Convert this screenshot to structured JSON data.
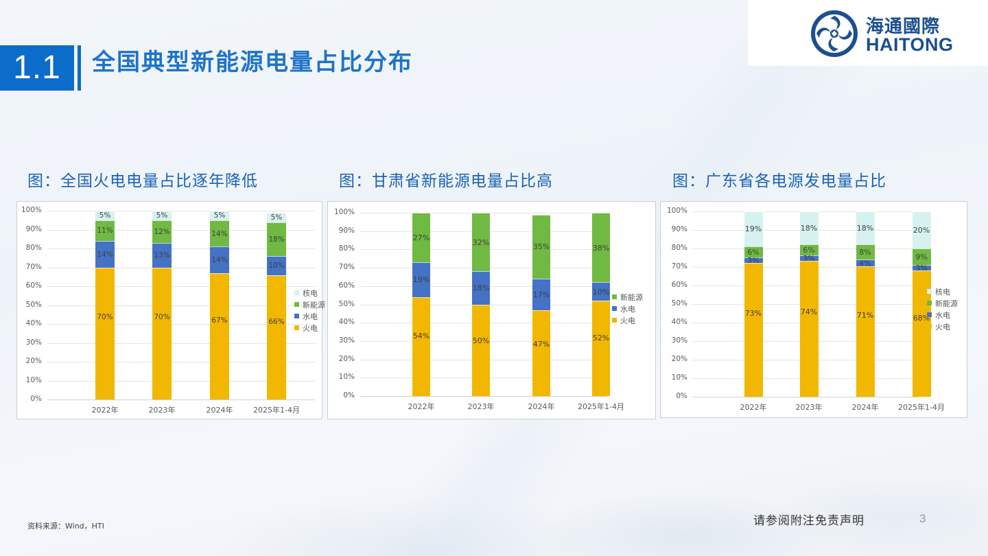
{
  "header": {
    "section_number": "1.1",
    "title": "全国典型新能源电量占比分布",
    "logo": {
      "cn": "海通國際",
      "en": "HAITONG",
      "icon": "haitong-logo-icon",
      "color": "#1b4f8f"
    },
    "accent_color": "#0b6cc9"
  },
  "captions": [
    "图：全国火电电量占比逐年降低",
    "图：甘肃省新能源电量占比高",
    "图：广东省各电源发电量占比"
  ],
  "colors": {
    "火电": "#f2b700",
    "水电": "#4472c4",
    "新能源": "#70b942",
    "核电": "#d6f2f0"
  },
  "chart_data": [
    {
      "type": "bar",
      "stacked": true,
      "title": "图：全国火电电量占比逐年降低",
      "categories": [
        "2022年",
        "2023年",
        "2024年",
        "2025年1-4月"
      ],
      "series": [
        {
          "name": "火电",
          "values": [
            70,
            70,
            67,
            66
          ],
          "labels": [
            "70%",
            "70%",
            "67%",
            "66%"
          ]
        },
        {
          "name": "水电",
          "values": [
            14,
            13,
            14,
            10
          ],
          "labels": [
            "14%",
            "13%",
            "14%",
            "10%"
          ]
        },
        {
          "name": "新能源",
          "values": [
            11,
            12,
            14,
            18
          ],
          "labels": [
            "11%",
            "12%",
            "14%",
            "18%"
          ]
        },
        {
          "name": "核电",
          "values": [
            5,
            5,
            5,
            5
          ],
          "labels": [
            "5%",
            "5%",
            "5%",
            "5%"
          ]
        }
      ],
      "legend": [
        "核电",
        "新能源",
        "水电",
        "火电"
      ],
      "yticks": [
        "0%",
        "10%",
        "20%",
        "30%",
        "40%",
        "50%",
        "60%",
        "70%",
        "80%",
        "90%",
        "100%"
      ],
      "ylim": [
        0,
        100
      ],
      "xlabel": "",
      "ylabel": "",
      "legend_position": "right",
      "grid": true
    },
    {
      "type": "bar",
      "stacked": true,
      "title": "图：甘肃省新能源电量占比高",
      "categories": [
        "2022年",
        "2023年",
        "2024年",
        "2025年1-4月"
      ],
      "series": [
        {
          "name": "火电",
          "values": [
            54,
            50,
            47,
            52
          ],
          "labels": [
            "54%",
            "50%",
            "47%",
            "52%"
          ]
        },
        {
          "name": "水电",
          "values": [
            19,
            18,
            17,
            10
          ],
          "labels": [
            "19%",
            "18%",
            "17%",
            "10%"
          ]
        },
        {
          "name": "新能源",
          "values": [
            27,
            32,
            35,
            38
          ],
          "labels": [
            "27%",
            "32%",
            "35%",
            "38%"
          ]
        }
      ],
      "legend": [
        "新能源",
        "水电",
        "火电"
      ],
      "yticks": [
        "0%",
        "10%",
        "20%",
        "30%",
        "40%",
        "50%",
        "60%",
        "70%",
        "80%",
        "90%",
        "100%"
      ],
      "ylim": [
        0,
        100
      ],
      "xlabel": "",
      "ylabel": "",
      "legend_position": "right",
      "grid": true
    },
    {
      "type": "bar",
      "stacked": true,
      "title": "图：广东省各电源发电量占比",
      "categories": [
        "2022年",
        "2023年",
        "2024年",
        "2025年1-4月"
      ],
      "series": [
        {
          "name": "火电",
          "values": [
            73,
            74,
            71,
            68
          ],
          "labels": [
            "73%",
            "74%",
            "71%",
            "68%"
          ]
        },
        {
          "name": "水电",
          "values": [
            3,
            3,
            4,
            3
          ],
          "labels": [
            "3%",
            "3%",
            "4%",
            "3%"
          ]
        },
        {
          "name": "新能源",
          "values": [
            6,
            6,
            8,
            9
          ],
          "labels": [
            "6%",
            "6%",
            "8%",
            "9%"
          ]
        },
        {
          "name": "核电",
          "values": [
            19,
            18,
            18,
            20
          ],
          "labels": [
            "19%",
            "18%",
            "18%",
            "20%"
          ]
        }
      ],
      "legend": [
        "核电",
        "新能源",
        "水电",
        "火电"
      ],
      "yticks": [
        "0%",
        "10%",
        "20%",
        "30%",
        "40%",
        "50%",
        "60%",
        "70%",
        "80%",
        "90%",
        "100%"
      ],
      "ylim": [
        0,
        100
      ],
      "xlabel": "",
      "ylabel": "",
      "legend_position": "right",
      "grid": true
    }
  ],
  "footer": {
    "source": "资料来源：Wind，HTI",
    "disclaimer": "请参阅附注免责声明",
    "page_number": "3"
  }
}
